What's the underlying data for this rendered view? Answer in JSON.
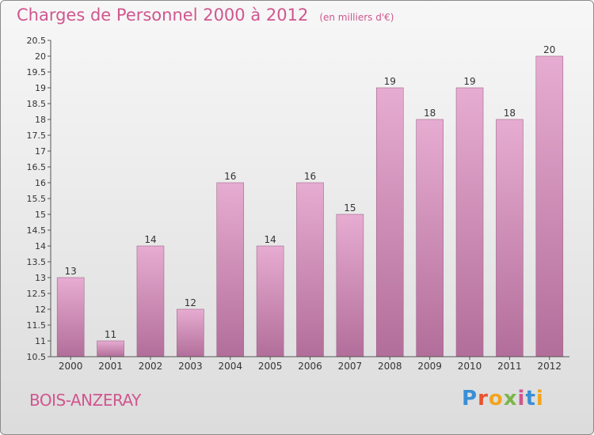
{
  "title": "Charges de Personnel 2000 à 2012",
  "subtitle": "(en milliers d'€)",
  "commune": "BOIS-ANZERAY",
  "logo": {
    "letters": [
      "P",
      "r",
      "o",
      "x",
      "i",
      "t",
      "i"
    ],
    "colors": [
      "#3a8fd6",
      "#e8532c",
      "#f2a41c",
      "#7ab648",
      "#d0568f",
      "#3a8fd6",
      "#f2a41c"
    ]
  },
  "colors": {
    "bar_top": "#e7acd1",
    "bar_bottom": "#b26e9a",
    "text": "#d0568f"
  },
  "chart_data": {
    "type": "bar",
    "title": "Charges de Personnel 2000 à 2012",
    "categories": [
      "2000",
      "2001",
      "2002",
      "2003",
      "2004",
      "2005",
      "2006",
      "2007",
      "2008",
      "2009",
      "2010",
      "2011",
      "2012"
    ],
    "values": [
      13,
      11,
      14,
      12,
      16,
      14,
      16,
      15,
      19,
      18,
      19,
      18,
      20
    ],
    "value_labels": [
      "13",
      "11",
      "14",
      "12",
      "16",
      "14",
      "16",
      "15",
      "19",
      "18",
      "19",
      "18",
      "20"
    ],
    "ylim": [
      10.5,
      20.5
    ],
    "yticks": [
      10.5,
      11,
      11.5,
      12,
      12.5,
      13,
      13.5,
      14,
      14.5,
      15,
      15.5,
      16,
      16.5,
      17,
      17.5,
      18,
      18.5,
      19,
      19.5,
      20,
      20.5
    ],
    "ytick_labels": [
      "10.5",
      "11",
      "11.5",
      "12",
      "12.5",
      "13",
      "13.5",
      "14",
      "14.5",
      "15",
      "15.5",
      "16",
      "16.5",
      "17",
      "17.5",
      "18",
      "18.5",
      "19",
      "19.5",
      "20",
      "20.5"
    ],
    "grid": false,
    "legend": "none"
  }
}
